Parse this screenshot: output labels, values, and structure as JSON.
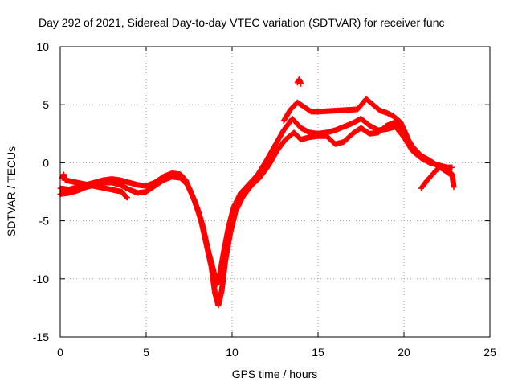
{
  "chart_data": {
    "type": "scatter",
    "title": "Day 292 of 2021, Sidereal Day-to-day VTEC variation (SDTVAR) for receiver func",
    "xlabel": "GPS time / hours",
    "ylabel": "SDTVAR / TECUs",
    "xlim": [
      0,
      25
    ],
    "ylim": [
      -15,
      10
    ],
    "x_ticks": [
      0,
      5,
      10,
      15,
      20,
      25
    ],
    "y_ticks": [
      -15,
      -10,
      -5,
      0,
      5,
      10
    ],
    "grid": true,
    "marker": "+",
    "series": [
      {
        "name": "SDTVAR",
        "color": "#ff0000",
        "tracks": [
          [
            [
              0.0,
              -2.2
            ],
            [
              0.5,
              -2.3
            ],
            [
              1.0,
              -2.1
            ],
            [
              1.5,
              -1.9
            ],
            [
              2.0,
              -1.7
            ],
            [
              2.5,
              -1.5
            ],
            [
              3.0,
              -1.4
            ],
            [
              3.5,
              -1.5
            ],
            [
              4.0,
              -1.7
            ],
            [
              4.5,
              -1.9
            ],
            [
              5.0,
              -2.0
            ],
            [
              5.5,
              -1.7
            ],
            [
              6.0,
              -1.2
            ],
            [
              6.5,
              -0.9
            ],
            [
              7.0,
              -1.0
            ],
            [
              7.3,
              -1.5
            ],
            [
              7.6,
              -2.5
            ],
            [
              8.0,
              -4.0
            ],
            [
              8.3,
              -5.5
            ],
            [
              8.6,
              -7.5
            ],
            [
              8.9,
              -9.2
            ],
            [
              9.1,
              -10.5
            ],
            [
              9.3,
              -9.5
            ],
            [
              9.5,
              -7.8
            ],
            [
              9.8,
              -5.5
            ],
            [
              10.1,
              -3.8
            ],
            [
              10.5,
              -2.6
            ],
            [
              11.0,
              -1.8
            ],
            [
              11.5,
              -1.0
            ],
            [
              12.0,
              0.2
            ],
            [
              12.5,
              1.5
            ],
            [
              13.0,
              2.8
            ],
            [
              13.5,
              3.8
            ],
            [
              14.0,
              3.0
            ],
            [
              14.5,
              2.6
            ],
            [
              15.0,
              2.5
            ],
            [
              15.5,
              2.6
            ],
            [
              16.0,
              2.8
            ],
            [
              16.5,
              3.1
            ],
            [
              17.0,
              3.4
            ],
            [
              17.5,
              3.8
            ],
            [
              18.0,
              3.2
            ],
            [
              18.5,
              2.8
            ],
            [
              19.0,
              2.9
            ],
            [
              19.5,
              3.1
            ],
            [
              20.0,
              2.2
            ],
            [
              20.5,
              1.0
            ],
            [
              21.0,
              0.4
            ],
            [
              21.5,
              0.0
            ],
            [
              22.0,
              -0.2
            ],
            [
              22.5,
              -0.4
            ],
            [
              22.8,
              -0.4
            ]
          ],
          [
            [
              0.0,
              -2.7
            ],
            [
              0.5,
              -2.6
            ],
            [
              1.0,
              -2.4
            ],
            [
              1.5,
              -2.1
            ],
            [
              2.0,
              -1.9
            ],
            [
              2.5,
              -1.7
            ],
            [
              3.0,
              -1.7
            ],
            [
              3.5,
              -1.9
            ],
            [
              4.0,
              -2.3
            ],
            [
              4.5,
              -2.6
            ],
            [
              5.0,
              -2.5
            ],
            [
              5.5,
              -2.0
            ],
            [
              6.0,
              -1.5
            ],
            [
              6.5,
              -1.2
            ],
            [
              7.0,
              -1.3
            ],
            [
              7.4,
              -1.9
            ],
            [
              7.8,
              -3.2
            ],
            [
              8.2,
              -5.0
            ],
            [
              8.5,
              -7.0
            ],
            [
              8.8,
              -9.0
            ],
            [
              9.0,
              -11.2
            ],
            [
              9.2,
              -12.3
            ],
            [
              9.4,
              -11.0
            ],
            [
              9.6,
              -8.5
            ],
            [
              9.9,
              -6.0
            ],
            [
              10.2,
              -4.2
            ],
            [
              10.6,
              -3.0
            ],
            [
              11.1,
              -2.0
            ],
            [
              11.6,
              -1.3
            ],
            [
              12.1,
              -0.3
            ],
            [
              12.6,
              1.0
            ],
            [
              13.1,
              2.0
            ],
            [
              13.6,
              2.6
            ],
            [
              14.0,
              2.0
            ],
            [
              14.5,
              2.2
            ],
            [
              15.0,
              2.3
            ],
            [
              15.5,
              2.3
            ],
            [
              16.0,
              1.6
            ],
            [
              16.5,
              1.8
            ],
            [
              17.0,
              2.5
            ],
            [
              17.5,
              3.0
            ],
            [
              18.0,
              2.5
            ],
            [
              18.5,
              2.6
            ],
            [
              19.0,
              3.2
            ],
            [
              19.5,
              3.5
            ],
            [
              20.0,
              2.6
            ],
            [
              20.5,
              1.4
            ],
            [
              21.0,
              0.6
            ],
            [
              21.5,
              0.2
            ],
            [
              22.0,
              -0.3
            ],
            [
              22.5,
              -0.8
            ],
            [
              22.8,
              -1.1
            ]
          ],
          [
            [
              13.0,
              3.6
            ],
            [
              13.4,
              4.6
            ],
            [
              13.8,
              5.2
            ],
            [
              14.2,
              4.8
            ],
            [
              14.6,
              4.4
            ],
            [
              15.0,
              4.4
            ],
            [
              17.3,
              4.6
            ],
            [
              17.8,
              5.5
            ],
            [
              18.2,
              5.0
            ],
            [
              18.6,
              4.5
            ],
            [
              19.0,
              4.3
            ],
            [
              19.4,
              4.0
            ],
            [
              19.8,
              3.5
            ],
            [
              20.2,
              2.2
            ]
          ],
          [
            [
              13.8,
              6.9
            ],
            [
              13.9,
              7.2
            ],
            [
              14.0,
              6.8
            ]
          ],
          [
            [
              21.0,
              -2.2
            ],
            [
              21.3,
              -1.6
            ],
            [
              21.6,
              -1.1
            ],
            [
              21.9,
              -0.6
            ],
            [
              22.2,
              -0.3
            ],
            [
              22.5,
              -0.5
            ],
            [
              22.8,
              -1.0
            ],
            [
              22.9,
              -2.1
            ]
          ],
          [
            [
              0.1,
              -1.3
            ],
            [
              0.2,
              -1.0
            ],
            [
              0.3,
              -1.5
            ],
            [
              3.6,
              -2.5
            ],
            [
              3.8,
              -2.9
            ],
            [
              3.9,
              -3.0
            ]
          ]
        ]
      }
    ]
  }
}
